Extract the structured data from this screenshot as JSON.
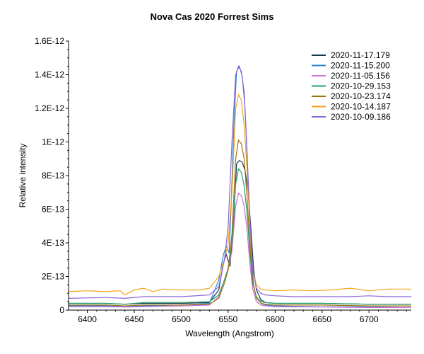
{
  "chart_data": {
    "type": "line",
    "title": "Nova Cas 2020   Forrest Sims",
    "xlabel": "Wavelength (Angstrom)",
    "ylabel": "Relative intensity",
    "xlim": [
      6380,
      6745
    ],
    "ylim": [
      0,
      1.6e-12
    ],
    "x_ticks": [
      6400,
      6450,
      6500,
      6550,
      6600,
      6650,
      6700
    ],
    "x_tick_labels": [
      "6400",
      "6450",
      "6500",
      "6550",
      "6600",
      "6650",
      "6700"
    ],
    "y_ticks": [
      0,
      2e-13,
      4e-13,
      6e-13,
      8e-13,
      1e-12,
      1.2e-12,
      1.4e-12,
      1.6e-12
    ],
    "y_tick_labels": [
      "0",
      "2E-13",
      "4E-13",
      "6E-13",
      "8E-13",
      "1E-12",
      "1.2E-12",
      "1.4E-12",
      "1.6E-12"
    ],
    "legend_position": "top-right",
    "series": [
      {
        "name": "2020-11-17.179",
        "color": "#1a3a4a",
        "x": [
          6380,
          6420,
          6440,
          6460,
          6500,
          6530,
          6540,
          6545,
          6548,
          6552,
          6556,
          6559,
          6562,
          6565,
          6568,
          6571,
          6574,
          6577,
          6580,
          6585,
          6590,
          6600,
          6650,
          6700,
          6745
        ],
        "y": [
          4e-14,
          4e-14,
          3.5e-14,
          4e-14,
          4e-14,
          4.5e-14,
          1.2e-13,
          2.8e-13,
          3.3e-13,
          2.6e-13,
          5.5e-13,
          8.7e-13,
          8.9e-13,
          8.8e-13,
          8.3e-13,
          7.2e-13,
          5e-13,
          2.5e-13,
          1.2e-13,
          6e-14,
          4.5e-14,
          4e-14,
          4e-14,
          3.5e-14,
          3.5e-14
        ]
      },
      {
        "name": "2020-11-15.200",
        "color": "#2b83d6",
        "x": [
          6380,
          6420,
          6440,
          6460,
          6500,
          6530,
          6540,
          6545,
          6548,
          6551,
          6553,
          6556,
          6559,
          6562,
          6565,
          6568,
          6571,
          6574,
          6577,
          6580,
          6585,
          6590,
          6600,
          6650,
          6700,
          6745
        ],
        "y": [
          2.5e-14,
          2.5e-14,
          2e-14,
          2.5e-14,
          3e-14,
          4e-14,
          1.8e-13,
          3.3e-13,
          3.8e-13,
          3.4e-13,
          6e-13,
          1.1e-12,
          1.42e-12,
          1.45e-12,
          1.39e-12,
          1.2e-12,
          8e-13,
          4e-13,
          1.5e-13,
          7e-14,
          4e-14,
          3e-14,
          2.5e-14,
          2e-14,
          2e-14,
          1.5e-14
        ]
      },
      {
        "name": "2020-11-05.156",
        "color": "#d070d8",
        "x": [
          6380,
          6420,
          6440,
          6460,
          6500,
          6530,
          6540,
          6546,
          6550,
          6554,
          6558,
          6561,
          6564,
          6567,
          6570,
          6573,
          6576,
          6580,
          6585,
          6590,
          6600,
          6650,
          6700,
          6745
        ],
        "y": [
          2e-14,
          2e-14,
          1.8e-14,
          2e-14,
          2.5e-14,
          3e-14,
          8e-14,
          1.8e-13,
          2.4e-13,
          3.5e-13,
          6.2e-13,
          6.95e-13,
          6.8e-13,
          6.2e-13,
          4.8e-13,
          2.8e-13,
          1.3e-13,
          5e-14,
          3e-14,
          2.5e-14,
          2e-14,
          1.8e-14,
          1.5e-14,
          1.5e-14
        ]
      },
      {
        "name": "2020-10-29.153",
        "color": "#22a26a",
        "x": [
          6380,
          6420,
          6440,
          6460,
          6500,
          6530,
          6540,
          6546,
          6550,
          6554,
          6558,
          6561,
          6564,
          6567,
          6570,
          6573,
          6576,
          6580,
          6585,
          6590,
          6600,
          6650,
          6700,
          6745
        ],
        "y": [
          4e-14,
          4e-14,
          3.5e-14,
          4.5e-14,
          4.5e-14,
          5e-14,
          9e-14,
          1.8e-13,
          2.5e-13,
          4e-13,
          7.5e-13,
          8.4e-13,
          8.2e-13,
          7.4e-13,
          5.8e-13,
          3.5e-13,
          1.6e-13,
          8e-14,
          5e-14,
          4.5e-14,
          4e-14,
          4e-14,
          3.5e-14,
          3.5e-14
        ]
      },
      {
        "name": "2020-10-23.174",
        "color": "#a07010",
        "x": [
          6380,
          6420,
          6440,
          6460,
          6500,
          6530,
          6540,
          6546,
          6550,
          6554,
          6558,
          6561,
          6564,
          6567,
          6570,
          6573,
          6576,
          6580,
          6585,
          6590,
          6600,
          6650,
          6700,
          6745
        ],
        "y": [
          3e-14,
          3e-14,
          2.5e-14,
          3e-14,
          3e-14,
          3.5e-14,
          7e-14,
          1.6e-13,
          2.4e-13,
          4.5e-13,
          9e-13,
          1.01e-12,
          9.9e-13,
          9e-13,
          6.8e-13,
          4e-13,
          1.8e-13,
          7e-14,
          4e-14,
          3.5e-14,
          3e-14,
          3e-14,
          2.5e-14,
          2.5e-14
        ]
      },
      {
        "name": "2020-10-14.187",
        "color": "#f5a314",
        "x": [
          6380,
          6400,
          6420,
          6435,
          6440,
          6450,
          6460,
          6470,
          6480,
          6500,
          6520,
          6530,
          6540,
          6546,
          6550,
          6554,
          6558,
          6561,
          6564,
          6567,
          6570,
          6573,
          6576,
          6580,
          6585,
          6590,
          6600,
          6620,
          6640,
          6660,
          6680,
          6700,
          6720,
          6745
        ],
        "y": [
          1.1e-13,
          1.15e-13,
          1.1e-13,
          1.15e-13,
          9e-14,
          1.2e-13,
          1.3e-13,
          1.1e-13,
          1.25e-13,
          1.2e-13,
          1.2e-13,
          1.3e-13,
          2e-13,
          3e-13,
          4e-13,
          7e-13,
          1.2e-12,
          1.28e-12,
          1.25e-12,
          1.1e-12,
          8.5e-13,
          5e-13,
          2.5e-13,
          1.5e-13,
          1.25e-13,
          1.2e-13,
          1.15e-13,
          1.2e-13,
          1.15e-13,
          1.2e-13,
          1.3e-13,
          1.15e-13,
          1.25e-13,
          1.25e-13
        ]
      },
      {
        "name": "2020-10-09.186",
        "color": "#8a66d8",
        "x": [
          6380,
          6420,
          6440,
          6460,
          6500,
          6530,
          6540,
          6546,
          6550,
          6554,
          6558,
          6561,
          6564,
          6567,
          6570,
          6573,
          6576,
          6580,
          6585,
          6590,
          6600,
          6620,
          6650,
          6680,
          6700,
          6720,
          6745
        ],
        "y": [
          7e-14,
          7.5e-14,
          7e-14,
          8e-14,
          8e-14,
          9e-14,
          1.4e-13,
          3e-13,
          5e-13,
          1e-12,
          1.4e-12,
          1.45e-12,
          1.42e-12,
          1.3e-12,
          9.5e-13,
          5.5e-13,
          2.5e-13,
          1.3e-13,
          1e-13,
          9e-14,
          8.5e-14,
          8e-14,
          8e-14,
          8e-14,
          8.5e-14,
          8e-14,
          8e-14
        ]
      }
    ]
  }
}
